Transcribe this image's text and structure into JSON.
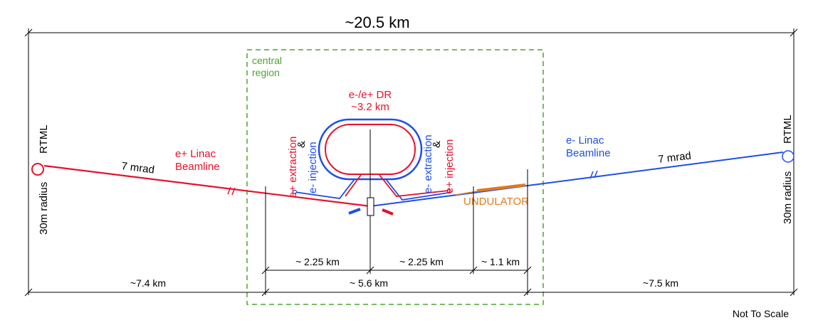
{
  "title": "~20.5 km",
  "central_region": {
    "line1": "central",
    "line2": "region"
  },
  "dr": {
    "line1": "e-/e+  DR",
    "line2": "~3.2 km"
  },
  "left": {
    "rtml": "RTML",
    "radius": "30m radius",
    "angle": "7 mrad",
    "linac_line1": "e+ Linac",
    "linac_line2": "Beamline"
  },
  "right": {
    "rtml": "RTML",
    "radius": "30m radius",
    "angle": "7 mrad",
    "linac_line1": "e- Linac",
    "linac_line2": "Beamline"
  },
  "vertical_labels": {
    "pos_extraction": "e+ extraction",
    "amp1": "&",
    "ele_injection": "e-  injection",
    "ele_extraction": "e- extraction",
    "amp2": "&",
    "pos_injection": "e+  injection"
  },
  "undulator": "UNDULATOR",
  "dimensions": {
    "left_span": "~7.4 km",
    "right_span": "~7.5 km",
    "inner_left": "~ 2.25 km",
    "inner_right": "~ 2.25 km",
    "inner_far": "~ 1.1 km",
    "central_span": "~ 5.6 km"
  },
  "footer": "Not To Scale",
  "colors": {
    "positron": "#e8102a",
    "electron": "#1d4fe6",
    "central_region": "#4aa52c",
    "undulator": "#e07a1a"
  }
}
